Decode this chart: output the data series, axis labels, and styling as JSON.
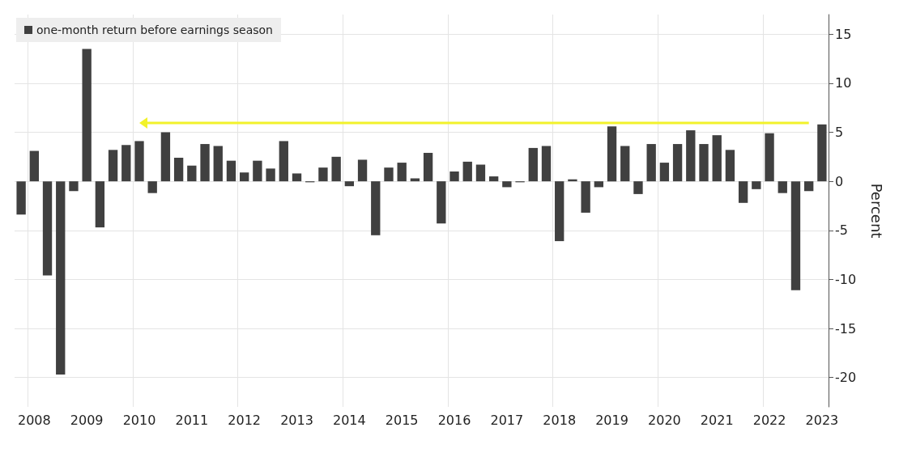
{
  "chart_data": {
    "type": "bar",
    "categories": [
      null,
      "2008",
      null,
      null,
      null,
      "2009",
      null,
      null,
      null,
      "2010",
      null,
      null,
      null,
      "2011",
      null,
      null,
      null,
      "2012",
      null,
      null,
      null,
      "2013",
      null,
      null,
      null,
      "2014",
      null,
      null,
      null,
      "2015",
      null,
      null,
      null,
      "2016",
      null,
      null,
      null,
      "2017",
      null,
      null,
      null,
      "2018",
      null,
      null,
      null,
      "2019",
      null,
      null,
      null,
      "2020",
      null,
      null,
      null,
      "2021",
      null,
      null,
      null,
      "2022",
      null,
      null,
      null,
      "2023"
    ],
    "series": [
      {
        "name": "one-month return before earnings season",
        "color": "#404040",
        "values": [
          -3.4,
          3.1,
          -9.6,
          -19.7,
          -1.0,
          13.5,
          -4.7,
          3.2,
          3.7,
          4.1,
          -1.2,
          5.0,
          2.4,
          1.6,
          3.8,
          3.6,
          2.1,
          0.9,
          2.1,
          1.3,
          4.1,
          0.8,
          -0.1,
          1.4,
          2.5,
          -0.5,
          2.2,
          -5.5,
          1.4,
          1.9,
          0.3,
          2.9,
          -4.3,
          1.0,
          2.0,
          1.7,
          0.5,
          -0.6,
          -0.1,
          3.4,
          3.6,
          -6.1,
          0.2,
          -3.2,
          -0.6,
          5.6,
          3.6,
          -1.3,
          3.8,
          1.9,
          3.8,
          5.2,
          3.8,
          4.7,
          3.2,
          -2.2,
          -0.8,
          4.9,
          -1.2,
          -11.1,
          -1.0,
          5.8
        ]
      }
    ],
    "ylabel": "Percent",
    "ylim": [
      -23,
      17
    ],
    "yticks": [
      -20,
      -15,
      -10,
      -5,
      0,
      5,
      10,
      15
    ],
    "grid": true,
    "legend": "top left"
  }
}
